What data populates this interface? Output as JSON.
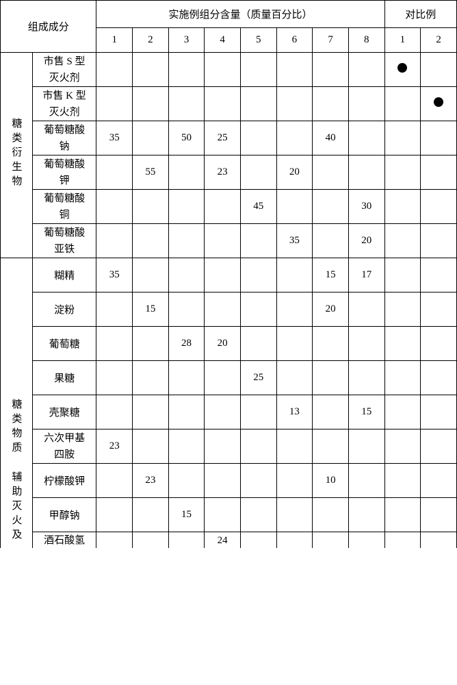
{
  "header": {
    "composition": "组成成分",
    "example_content": "实施例组分含量（质量百分比）",
    "contrast": "对比例",
    "ex_cols": [
      "1",
      "2",
      "3",
      "4",
      "5",
      "6",
      "7",
      "8"
    ],
    "ct_cols": [
      "1",
      "2"
    ]
  },
  "cat1": {
    "label": "糖类衍生物"
  },
  "cat2a": {
    "label": "糖类物质"
  },
  "cat2b": {
    "label": "辅助灭火及"
  },
  "rows": {
    "r1": {
      "name_l1": "市售 S 型",
      "name_l2": "灭火剂",
      "d": [
        "",
        "",
        "",
        "",
        "",
        "",
        "",
        "",
        "●",
        ""
      ]
    },
    "r2": {
      "name_l1": "市售 K 型",
      "name_l2": "灭火剂",
      "d": [
        "",
        "",
        "",
        "",
        "",
        "",
        "",
        "",
        "",
        "●"
      ]
    },
    "r3": {
      "name_l1": "葡萄糖酸",
      "name_l2": "钠",
      "d": [
        "35",
        "",
        "50",
        "25",
        "",
        "",
        "40",
        "",
        "",
        ""
      ]
    },
    "r4": {
      "name_l1": "葡萄糖酸",
      "name_l2": "钾",
      "d": [
        "",
        "55",
        "",
        "23",
        "",
        "20",
        "",
        "",
        "",
        ""
      ]
    },
    "r5": {
      "name_l1": "葡萄糖酸",
      "name_l2": "铜",
      "d": [
        "",
        "",
        "",
        "",
        "45",
        "",
        "",
        "30",
        "",
        ""
      ]
    },
    "r6": {
      "name_l1": "葡萄糖酸",
      "name_l2": "亚铁",
      "d": [
        "",
        "",
        "",
        "",
        "",
        "35",
        "",
        "20",
        "",
        ""
      ]
    },
    "r7": {
      "name": "糊精",
      "d": [
        "35",
        "",
        "",
        "",
        "",
        "",
        "15",
        "17",
        "",
        ""
      ]
    },
    "r8": {
      "name": "淀粉",
      "d": [
        "",
        "15",
        "",
        "",
        "",
        "",
        "20",
        "",
        "",
        ""
      ]
    },
    "r9": {
      "name": "葡萄糖",
      "d": [
        "",
        "",
        "28",
        "20",
        "",
        "",
        "",
        "",
        "",
        ""
      ]
    },
    "r10": {
      "name": "果糖",
      "d": [
        "",
        "",
        "",
        "",
        "25",
        "",
        "",
        "",
        "",
        ""
      ]
    },
    "r11": {
      "name": "壳聚糖",
      "d": [
        "",
        "",
        "",
        "",
        "",
        "13",
        "",
        "15",
        "",
        ""
      ]
    },
    "r12": {
      "name_l1": "六次甲基",
      "name_l2": "四胺",
      "d": [
        "23",
        "",
        "",
        "",
        "",
        "",
        "",
        "",
        "",
        ""
      ]
    },
    "r13": {
      "name": "柠檬酸钾",
      "d": [
        "",
        "23",
        "",
        "",
        "",
        "",
        "10",
        "",
        "",
        ""
      ]
    },
    "r14": {
      "name": "甲醇钠",
      "d": [
        "",
        "",
        "15",
        "",
        "",
        "",
        "",
        "",
        "",
        ""
      ]
    },
    "r15": {
      "name": "酒石酸氢",
      "d": [
        "",
        "",
        "",
        "24",
        "",
        "",
        "",
        "",
        "",
        ""
      ]
    }
  }
}
